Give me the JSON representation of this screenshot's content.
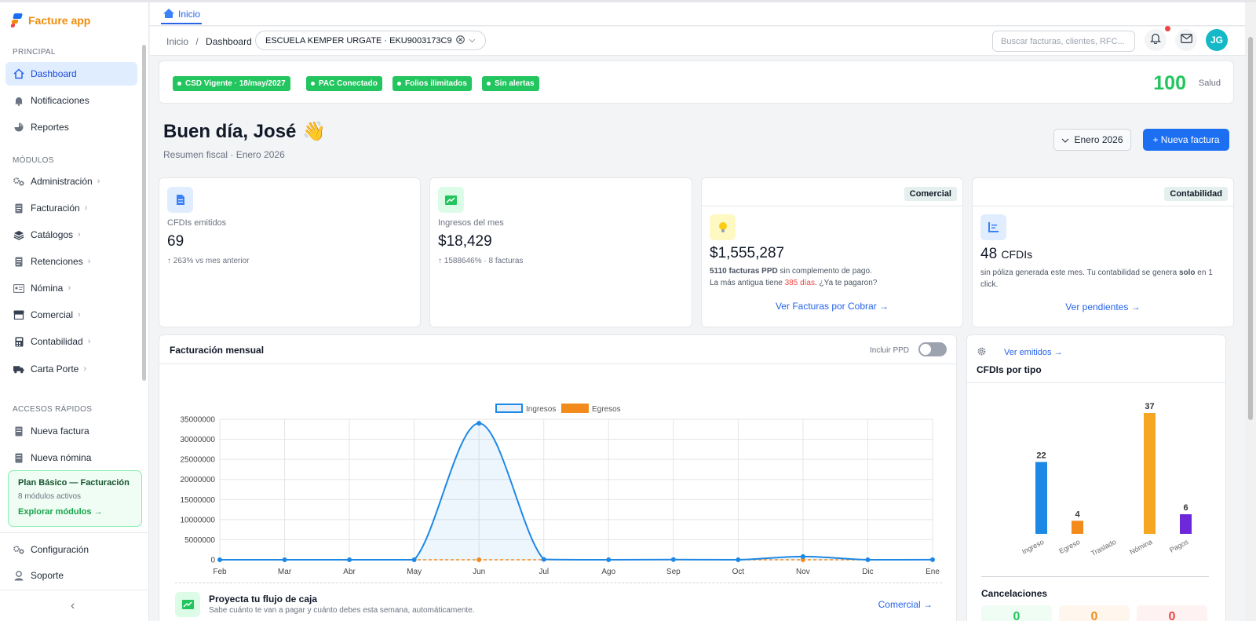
{
  "app": {
    "name": "Facture app"
  },
  "sidebar": {
    "sections": {
      "principal": "PRINCIPAL",
      "modulos": "MÓDULOS",
      "accesos": "ACCESOS RÁPIDOS"
    },
    "principal": [
      {
        "label": "Dashboard",
        "icon": "home-icon"
      },
      {
        "label": "Notificaciones",
        "icon": "bell-icon"
      },
      {
        "label": "Reportes",
        "icon": "pie-chart-icon"
      }
    ],
    "modulos": [
      {
        "label": "Administración",
        "icon": "gears-icon"
      },
      {
        "label": "Facturación",
        "icon": "invoice-icon"
      },
      {
        "label": "Catálogos",
        "icon": "layers-icon"
      },
      {
        "label": "Retenciones",
        "icon": "document-icon"
      },
      {
        "label": "Nómina",
        "icon": "id-card-icon"
      },
      {
        "label": "Comercial",
        "icon": "store-icon"
      },
      {
        "label": "Contabilidad",
        "icon": "calculator-icon"
      },
      {
        "label": "Carta Porte",
        "icon": "truck-icon"
      }
    ],
    "accesos": [
      {
        "label": "Nueva factura",
        "icon": "document-icon"
      },
      {
        "label": "Nueva nómina",
        "icon": "document-icon"
      }
    ],
    "plan": {
      "title": "Plan Básico — Facturación",
      "subtitle": "8 módulos activos",
      "link": "Explorar módulos →"
    },
    "footer": [
      {
        "label": "Configuración",
        "icon": "gears-icon"
      },
      {
        "label": "Soporte",
        "icon": "support-icon"
      }
    ],
    "collapse": "‹"
  },
  "tabs": {
    "home": "Inicio"
  },
  "topbar": {
    "breadcrumb_root": "Inicio",
    "breadcrumb_sep": "/",
    "breadcrumb_current": "Dashboard",
    "company": "ESCUELA KEMPER URGATE · EKU9003173C9",
    "search_placeholder": "Buscar facturas, clientes, RFC...",
    "avatar": "JG"
  },
  "status": {
    "badges": [
      "CSD Vigente · 18/may/2027",
      "PAC Conectado",
      "Folios ilimitados",
      "Sin alertas"
    ],
    "score": "100",
    "score_label": "Salud"
  },
  "greeting": {
    "title": "Buen día, José",
    "emoji": "👋",
    "subtitle": "Resumen fiscal · Enero 2026"
  },
  "actions": {
    "month": "Enero 2026",
    "new_invoice": "+ Nueva factura"
  },
  "kpis": {
    "cfdis": {
      "label": "CFDIs emitidos",
      "value": "69",
      "note": "↑ 263% vs mes anterior"
    },
    "ingresos": {
      "label": "Ingresos del mes",
      "value": "$18,429",
      "note": "↑ 1588646% · 8 facturas"
    },
    "comercial": {
      "pill": "Comercial",
      "value": "$1,555,287",
      "line1_bold": "5110 facturas PPD",
      "line1_rest": " sin complemento de pago.",
      "line2_pre": "La más antigua tiene ",
      "line2_red": "385 días",
      "line2_post": ". ¿Ya te pagaron?",
      "link": "Ver Facturas por Cobrar →"
    },
    "contabilidad": {
      "pill": "Contabilidad",
      "value": "48",
      "unit": "CFDIs",
      "text_pre": "sin póliza generada este mes. Tu contabilidad se genera ",
      "text_bold": "solo",
      "text_post": " en 1 click.",
      "link": "Ver pendientes →"
    }
  },
  "monthly": {
    "title": "Facturación mensual",
    "toggle_label": "Incluir PPD",
    "promo_title": "Proyecta tu flujo de caja",
    "promo_sub": "Sabe cuánto te van a pagar y cuánto debes esta semana, automáticamente.",
    "promo_link": "Comercial →"
  },
  "types": {
    "title": "CFDIs por tipo",
    "link": "Ver emitidos →",
    "cancel_title": "Cancelaciones",
    "cancel_values": [
      "0",
      "0",
      "0"
    ]
  },
  "colors": {
    "ingresos": "#1e88e5",
    "egresos": "#f28b1c",
    "accent": "#1d6ff2",
    "ok": "#22c55e"
  },
  "chart_data": [
    {
      "type": "line",
      "x": [
        "Feb",
        "Mar",
        "Abr",
        "May",
        "Jun",
        "Jul",
        "Ago",
        "Sep",
        "Oct",
        "Nov",
        "Dic",
        "Ene"
      ],
      "series": [
        {
          "name": "Ingresos",
          "values": [
            0,
            0,
            0,
            0,
            34000000,
            100000,
            0,
            50000,
            0,
            800000,
            0,
            18429
          ]
        },
        {
          "name": "Egresos",
          "values": [
            0,
            0,
            0,
            0,
            0,
            0,
            0,
            0,
            0,
            0,
            0,
            0
          ]
        }
      ],
      "ylim": [
        0,
        35000000
      ],
      "yticks": [
        "0",
        "5000000",
        "10000000",
        "15000000",
        "20000000",
        "25000000",
        "30000000",
        "35000000"
      ],
      "grid": true,
      "legend": "top-center"
    },
    {
      "type": "bar",
      "categories": [
        "Ingreso",
        "Egreso",
        "Traslado",
        "Nómina",
        "Pagos"
      ],
      "values": [
        22,
        4,
        0,
        37,
        6
      ],
      "colors": [
        "#1e88e5",
        "#f28b1c",
        "#9ca3af",
        "#f5a623",
        "#6d28d9"
      ],
      "ylim": [
        0,
        37
      ],
      "grid": false
    }
  ]
}
